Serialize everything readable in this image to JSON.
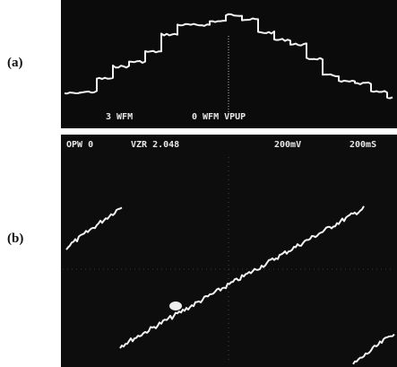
{
  "panels": [
    {
      "label": "(a)",
      "readouts": [
        "3 WFM",
        "0 WFM VPUP"
      ]
    },
    {
      "label": "(b)",
      "readouts": [
        "OPW 0",
        "VZR 2.048",
        "200mV",
        "200mS"
      ]
    }
  ]
}
